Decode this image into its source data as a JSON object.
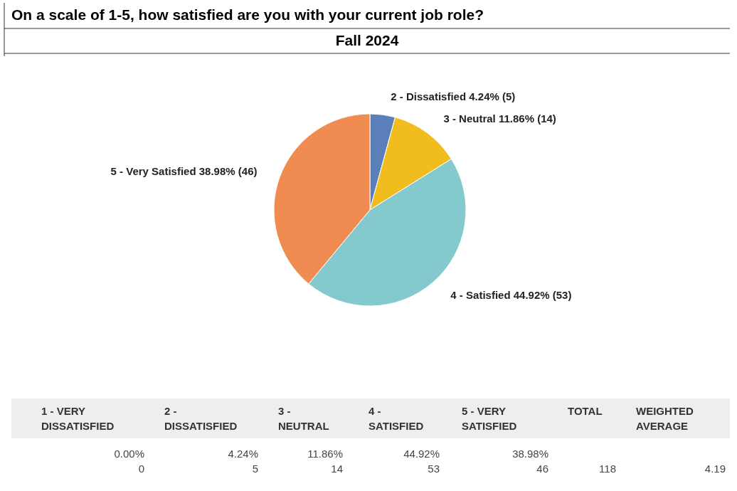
{
  "chart_data": {
    "type": "pie",
    "title": "On a scale of 1-5, how satisfied are you with your current job role?",
    "subtitle": "Fall 2024",
    "categories": [
      "2 - Dissatisfied",
      "3 - Neutral",
      "4 - Satisfied",
      "5 - Very Satisfied"
    ],
    "values": [
      5,
      14,
      53,
      46
    ],
    "value_labels": [
      "4.24% (5)",
      "11.86% (14)",
      "44.92% (53)",
      "38.98% (46)"
    ],
    "colors": [
      "#5b7fb8",
      "#f0bc1e",
      "#83c9cd",
      "#f08b52"
    ],
    "annotations": [
      "1 - VERY DISSATISFIED",
      "2 - DISSATISFIED",
      "3 - NEUTRAL",
      "4 - SATISFIED",
      "5 - VERY SATISFIED",
      "TOTAL",
      "WEIGHTED AVERAGE",
      "0.00%",
      "4.24%",
      "11.86%",
      "44.92%",
      "38.98%",
      "0",
      "5",
      "14",
      "53",
      "46",
      "118",
      "4.19"
    ]
  }
}
